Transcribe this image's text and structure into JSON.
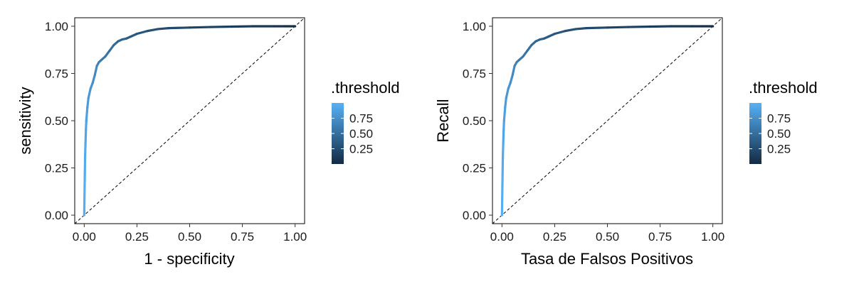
{
  "chart_data": [
    {
      "type": "line",
      "title": "",
      "xlabel": "1 - specificity",
      "ylabel": "sensitivity",
      "xlim": [
        0,
        1
      ],
      "ylim": [
        0,
        1
      ],
      "x_ticks": [
        "0.00",
        "0.25",
        "0.50",
        "0.75",
        "1.00"
      ],
      "y_ticks": [
        "0.00",
        "0.25",
        "0.50",
        "0.75",
        "1.00"
      ],
      "grid": false,
      "diagonal_reference": true,
      "color_scale": {
        "title": ".threshold",
        "ticks": [
          "0.75",
          "0.50",
          "0.25"
        ],
        "tick_values": [
          0.75,
          0.5,
          0.25
        ],
        "low_color": "#132B43",
        "high_color": "#56B1F7",
        "legend_position": "right"
      },
      "x": [
        0,
        0.002,
        0.004,
        0.006,
        0.008,
        0.01,
        0.015,
        0.02,
        0.03,
        0.04,
        0.05,
        0.06,
        0.07,
        0.08,
        0.1,
        0.12,
        0.14,
        0.16,
        0.18,
        0.2,
        0.22,
        0.25,
        0.3,
        0.35,
        0.4,
        0.5,
        0.6,
        0.7,
        0.8,
        0.9,
        0.95,
        1.0
      ],
      "y": [
        0,
        0.15,
        0.3,
        0.38,
        0.45,
        0.5,
        0.57,
        0.62,
        0.67,
        0.7,
        0.74,
        0.79,
        0.81,
        0.82,
        0.84,
        0.87,
        0.9,
        0.92,
        0.93,
        0.935,
        0.945,
        0.96,
        0.975,
        0.985,
        0.99,
        0.993,
        0.996,
        0.998,
        1.0,
        1.0,
        1.0,
        1.0
      ],
      "threshold": [
        0.99,
        0.97,
        0.95,
        0.93,
        0.91,
        0.89,
        0.86,
        0.83,
        0.79,
        0.76,
        0.72,
        0.68,
        0.64,
        0.61,
        0.57,
        0.53,
        0.49,
        0.45,
        0.42,
        0.39,
        0.36,
        0.33,
        0.3,
        0.27,
        0.24,
        0.2,
        0.17,
        0.14,
        0.11,
        0.08,
        0.05,
        0.02
      ]
    },
    {
      "type": "line",
      "title": "",
      "xlabel": "Tasa de Falsos Positivos",
      "ylabel": "Recall",
      "xlim": [
        0,
        1
      ],
      "ylim": [
        0,
        1
      ],
      "x_ticks": [
        "0.00",
        "0.25",
        "0.50",
        "0.75",
        "1.00"
      ],
      "y_ticks": [
        "0.00",
        "0.25",
        "0.50",
        "0.75",
        "1.00"
      ],
      "grid": false,
      "diagonal_reference": true,
      "color_scale": {
        "title": ".threshold",
        "ticks": [
          "0.75",
          "0.50",
          "0.25"
        ],
        "tick_values": [
          0.75,
          0.5,
          0.25
        ],
        "low_color": "#132B43",
        "high_color": "#56B1F7",
        "legend_position": "right"
      },
      "x": [
        0,
        0.002,
        0.004,
        0.006,
        0.008,
        0.01,
        0.015,
        0.02,
        0.03,
        0.04,
        0.05,
        0.06,
        0.07,
        0.08,
        0.1,
        0.12,
        0.14,
        0.16,
        0.18,
        0.2,
        0.22,
        0.25,
        0.3,
        0.35,
        0.4,
        0.5,
        0.6,
        0.7,
        0.8,
        0.9,
        0.95,
        1.0
      ],
      "y": [
        0,
        0.15,
        0.3,
        0.38,
        0.45,
        0.5,
        0.57,
        0.62,
        0.67,
        0.7,
        0.74,
        0.79,
        0.81,
        0.82,
        0.84,
        0.87,
        0.9,
        0.92,
        0.93,
        0.935,
        0.945,
        0.96,
        0.975,
        0.985,
        0.99,
        0.993,
        0.996,
        0.998,
        1.0,
        1.0,
        1.0,
        1.0
      ],
      "threshold": [
        0.99,
        0.97,
        0.95,
        0.93,
        0.91,
        0.89,
        0.86,
        0.83,
        0.79,
        0.76,
        0.72,
        0.68,
        0.64,
        0.61,
        0.57,
        0.53,
        0.49,
        0.45,
        0.42,
        0.39,
        0.36,
        0.33,
        0.3,
        0.27,
        0.24,
        0.2,
        0.17,
        0.14,
        0.11,
        0.08,
        0.05,
        0.02
      ]
    }
  ]
}
